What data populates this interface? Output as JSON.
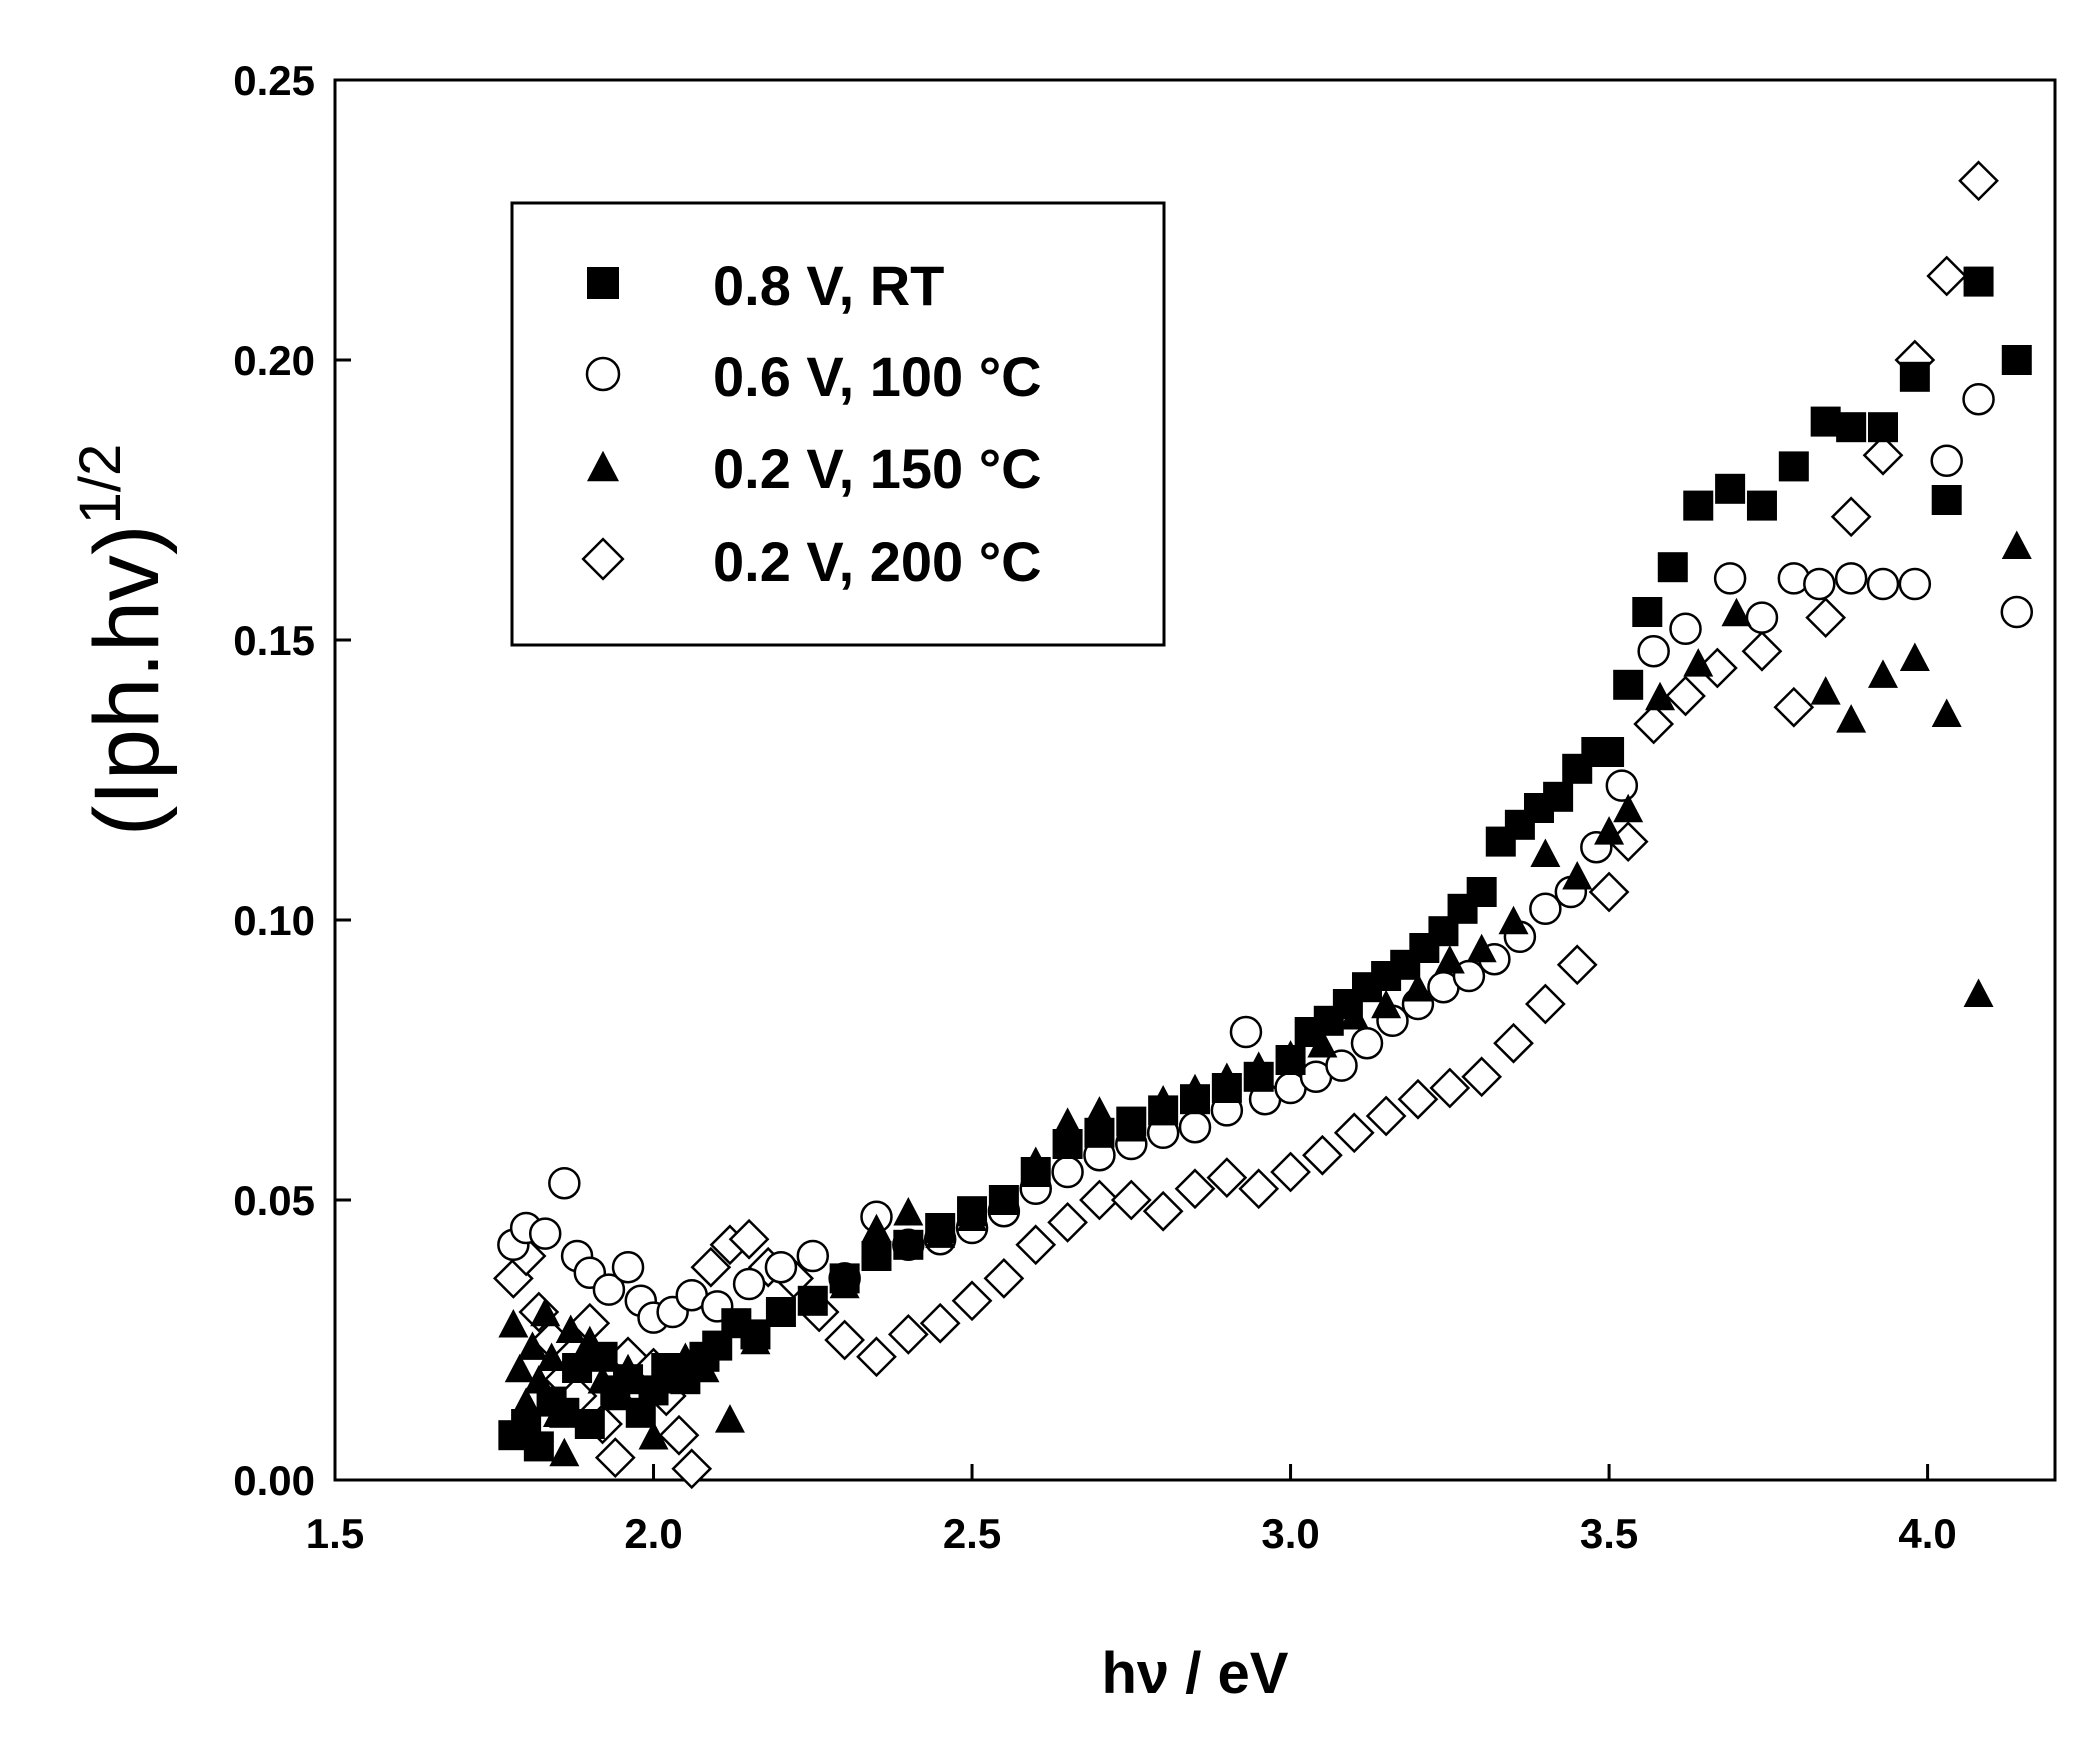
{
  "chart_data": {
    "type": "scatter",
    "xlabel": "hν / eV",
    "ylabel_base": "(Iph.hv)",
    "ylabel_exponent": "1/2",
    "xlim": [
      1.5,
      4.2
    ],
    "ylim": [
      0.0,
      0.25
    ],
    "x_ticks": [
      "1.5",
      "2.0",
      "2.5",
      "3.0",
      "3.5",
      "4.0"
    ],
    "y_ticks": [
      "0.00",
      "0.05",
      "0.10",
      "0.15",
      "0.20",
      "0.25"
    ],
    "grid": false,
    "legend_position": "top-left",
    "series": [
      {
        "name": "0.8 V, RT",
        "marker": "filled-square",
        "x": [
          1.78,
          1.8,
          1.82,
          1.84,
          1.86,
          1.88,
          1.9,
          1.92,
          1.94,
          1.96,
          1.98,
          2.0,
          2.02,
          2.05,
          2.08,
          2.1,
          2.13,
          2.16,
          2.2,
          2.25,
          2.3,
          2.35,
          2.4,
          2.45,
          2.5,
          2.55,
          2.6,
          2.65,
          2.7,
          2.75,
          2.8,
          2.85,
          2.9,
          2.95,
          3.0,
          3.03,
          3.06,
          3.09,
          3.12,
          3.15,
          3.18,
          3.21,
          3.24,
          3.27,
          3.3,
          3.33,
          3.36,
          3.39,
          3.42,
          3.45,
          3.48,
          3.5,
          3.53,
          3.56,
          3.6,
          3.64,
          3.69,
          3.74,
          3.79,
          3.84,
          3.88,
          3.93,
          3.98,
          4.03,
          4.08,
          4.14
        ],
        "y": [
          0.008,
          0.01,
          0.006,
          0.014,
          0.012,
          0.02,
          0.01,
          0.022,
          0.016,
          0.018,
          0.012,
          0.016,
          0.02,
          0.018,
          0.022,
          0.024,
          0.028,
          0.026,
          0.03,
          0.032,
          0.036,
          0.04,
          0.042,
          0.045,
          0.048,
          0.05,
          0.055,
          0.06,
          0.062,
          0.064,
          0.066,
          0.068,
          0.07,
          0.072,
          0.075,
          0.08,
          0.082,
          0.085,
          0.088,
          0.09,
          0.092,
          0.095,
          0.098,
          0.102,
          0.105,
          0.114,
          0.117,
          0.12,
          0.122,
          0.127,
          0.13,
          0.13,
          0.142,
          0.155,
          0.163,
          0.174,
          0.177,
          0.174,
          0.181,
          0.189,
          0.188,
          0.188,
          0.197,
          0.175,
          0.214,
          0.2
        ]
      },
      {
        "name": "0.6 V, 100 °C",
        "marker": "open-circle",
        "x": [
          1.78,
          1.8,
          1.83,
          1.86,
          1.88,
          1.9,
          1.93,
          1.96,
          1.98,
          2.0,
          2.03,
          2.06,
          2.1,
          2.15,
          2.2,
          2.25,
          2.3,
          2.35,
          2.4,
          2.45,
          2.5,
          2.55,
          2.6,
          2.65,
          2.7,
          2.75,
          2.8,
          2.85,
          2.9,
          2.93,
          2.96,
          3.0,
          3.04,
          3.08,
          3.12,
          3.16,
          3.2,
          3.24,
          3.28,
          3.32,
          3.36,
          3.4,
          3.44,
          3.48,
          3.52,
          3.57,
          3.62,
          3.69,
          3.74,
          3.79,
          3.83,
          3.88,
          3.93,
          3.98,
          4.03,
          4.08,
          4.14
        ],
        "y": [
          0.042,
          0.045,
          0.044,
          0.053,
          0.04,
          0.037,
          0.034,
          0.038,
          0.032,
          0.029,
          0.03,
          0.033,
          0.031,
          0.035,
          0.038,
          0.04,
          0.036,
          0.047,
          0.042,
          0.043,
          0.045,
          0.048,
          0.052,
          0.055,
          0.058,
          0.06,
          0.062,
          0.063,
          0.066,
          0.08,
          0.068,
          0.07,
          0.072,
          0.074,
          0.078,
          0.082,
          0.085,
          0.088,
          0.09,
          0.093,
          0.097,
          0.102,
          0.105,
          0.113,
          0.124,
          0.148,
          0.152,
          0.161,
          0.154,
          0.161,
          0.16,
          0.161,
          0.16,
          0.16,
          0.182,
          0.193,
          0.155
        ]
      },
      {
        "name": "0.2 V, 150 °C",
        "marker": "filled-triangle",
        "x": [
          1.78,
          1.79,
          1.8,
          1.81,
          1.82,
          1.83,
          1.84,
          1.85,
          1.86,
          1.87,
          1.88,
          1.9,
          1.92,
          1.94,
          1.96,
          1.98,
          2.0,
          2.02,
          2.05,
          2.08,
          2.12,
          2.16,
          2.2,
          2.25,
          2.3,
          2.35,
          2.4,
          2.45,
          2.5,
          2.55,
          2.6,
          2.65,
          2.7,
          2.75,
          2.8,
          2.85,
          2.9,
          2.95,
          3.0,
          3.05,
          3.1,
          3.15,
          3.2,
          3.25,
          3.3,
          3.35,
          3.4,
          3.45,
          3.5,
          3.53,
          3.58,
          3.64,
          3.7,
          3.84,
          3.88,
          3.93,
          3.98,
          4.03,
          4.08,
          4.14
        ],
        "y": [
          0.028,
          0.02,
          0.014,
          0.024,
          0.018,
          0.03,
          0.022,
          0.012,
          0.005,
          0.027,
          0.02,
          0.025,
          0.018,
          0.015,
          0.02,
          0.012,
          0.008,
          0.018,
          0.022,
          0.02,
          0.011,
          0.025,
          0.03,
          0.032,
          0.035,
          0.045,
          0.048,
          0.044,
          0.047,
          0.05,
          0.057,
          0.064,
          0.066,
          0.063,
          0.068,
          0.07,
          0.072,
          0.074,
          0.076,
          0.078,
          0.083,
          0.085,
          0.088,
          0.093,
          0.095,
          0.1,
          0.112,
          0.108,
          0.116,
          0.12,
          0.14,
          0.146,
          0.155,
          0.141,
          0.136,
          0.144,
          0.147,
          0.137,
          0.087,
          0.167
        ]
      },
      {
        "name": "0.2 V, 200 °C",
        "marker": "open-diamond",
        "x": [
          1.78,
          1.8,
          1.82,
          1.84,
          1.86,
          1.88,
          1.9,
          1.92,
          1.94,
          1.96,
          1.98,
          2.0,
          2.02,
          2.04,
          2.06,
          2.09,
          2.12,
          2.15,
          2.18,
          2.22,
          2.26,
          2.3,
          2.35,
          2.4,
          2.45,
          2.5,
          2.55,
          2.6,
          2.65,
          2.7,
          2.75,
          2.8,
          2.85,
          2.9,
          2.95,
          3.0,
          3.05,
          3.1,
          3.15,
          3.2,
          3.25,
          3.3,
          3.35,
          3.4,
          3.45,
          3.5,
          3.53,
          3.57,
          3.62,
          3.67,
          3.74,
          3.79,
          3.84,
          3.88,
          3.93,
          3.98,
          4.03,
          4.08
        ],
        "y": [
          0.036,
          0.04,
          0.03,
          0.025,
          0.018,
          0.015,
          0.028,
          0.01,
          0.004,
          0.022,
          0.016,
          0.02,
          0.015,
          0.008,
          0.002,
          0.038,
          0.042,
          0.043,
          0.038,
          0.036,
          0.03,
          0.025,
          0.022,
          0.026,
          0.028,
          0.032,
          0.036,
          0.042,
          0.046,
          0.05,
          0.05,
          0.048,
          0.052,
          0.054,
          0.052,
          0.055,
          0.058,
          0.062,
          0.065,
          0.068,
          0.07,
          0.072,
          0.078,
          0.085,
          0.092,
          0.105,
          0.114,
          0.135,
          0.14,
          0.145,
          0.148,
          0.138,
          0.154,
          0.172,
          0.183,
          0.2,
          0.215,
          0.232
        ]
      }
    ]
  }
}
